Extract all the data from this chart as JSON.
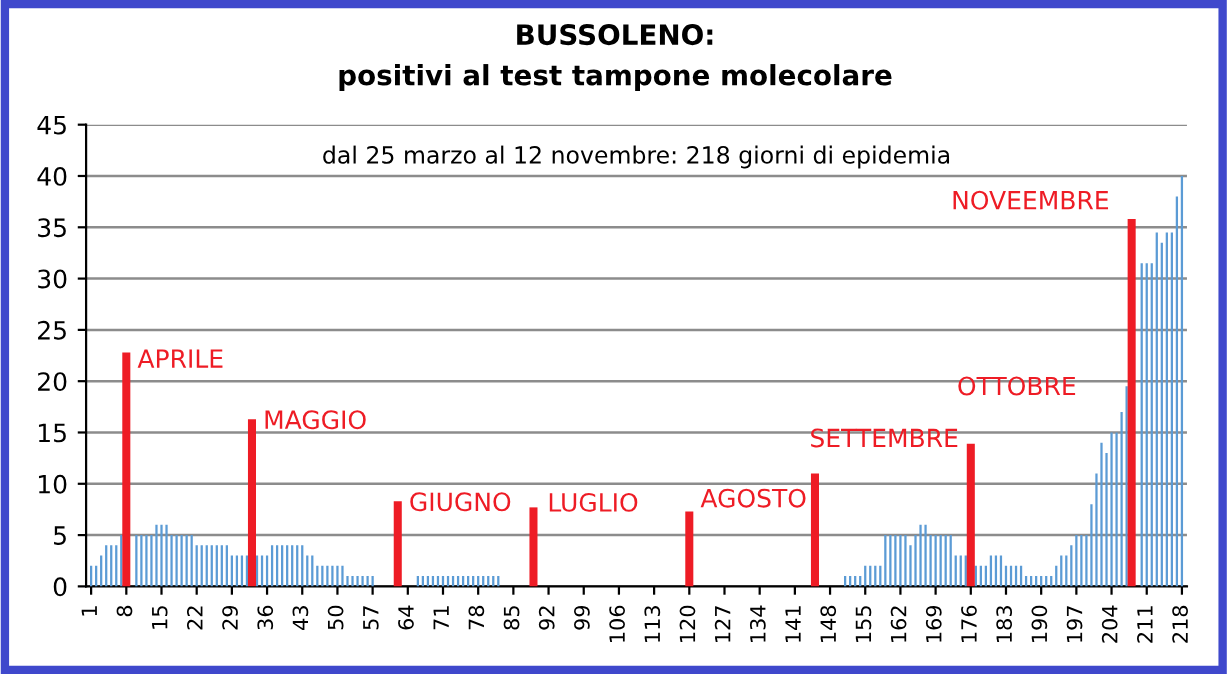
{
  "chart_data": {
    "type": "bar",
    "title": "BUSSOLENO:",
    "subtitle": "positivi al test tampone molecolare",
    "x": [
      1,
      2,
      3,
      4,
      5,
      6,
      7,
      8,
      9,
      10,
      11,
      12,
      13,
      14,
      15,
      16,
      17,
      18,
      19,
      20,
      21,
      22,
      23,
      24,
      25,
      26,
      27,
      28,
      29,
      30,
      31,
      32,
      33,
      34,
      35,
      36,
      37,
      38,
      39,
      40,
      41,
      42,
      43,
      44,
      45,
      46,
      47,
      48,
      49,
      50,
      51,
      52,
      53,
      54,
      55,
      56,
      57,
      58,
      59,
      60,
      61,
      62,
      63,
      64,
      65,
      66,
      67,
      68,
      69,
      70,
      71,
      72,
      73,
      74,
      75,
      76,
      77,
      78,
      79,
      80,
      81,
      82,
      83,
      84,
      85,
      86,
      87,
      88,
      89,
      90,
      91,
      92,
      93,
      94,
      95,
      96,
      97,
      98,
      99,
      100,
      101,
      102,
      103,
      104,
      105,
      106,
      107,
      108,
      109,
      110,
      111,
      112,
      113,
      114,
      115,
      116,
      117,
      118,
      119,
      120,
      121,
      122,
      123,
      124,
      125,
      126,
      127,
      128,
      129,
      130,
      131,
      132,
      133,
      134,
      135,
      136,
      137,
      138,
      139,
      140,
      141,
      142,
      143,
      144,
      145,
      146,
      147,
      148,
      149,
      150,
      151,
      152,
      153,
      154,
      155,
      156,
      157,
      158,
      159,
      160,
      161,
      162,
      163,
      164,
      165,
      166,
      167,
      168,
      169,
      170,
      171,
      172,
      173,
      174,
      175,
      176,
      177,
      178,
      179,
      180,
      181,
      182,
      183,
      184,
      185,
      186,
      187,
      188,
      189,
      190,
      191,
      192,
      193,
      194,
      195,
      196,
      197,
      198,
      199,
      200,
      201,
      202,
      203,
      204,
      205,
      206,
      207,
      208,
      209,
      210,
      211,
      212,
      213,
      214,
      215,
      216,
      217,
      218
    ],
    "xlim": [
      0,
      219
    ],
    "xticks": [
      1,
      8,
      15,
      22,
      29,
      36,
      43,
      50,
      57,
      64,
      71,
      78,
      85,
      92,
      99,
      106,
      113,
      120,
      127,
      134,
      141,
      148,
      155,
      162,
      169,
      176,
      183,
      190,
      197,
      204,
      211,
      218
    ],
    "ylim": [
      0,
      45
    ],
    "yticks": [
      0,
      5,
      10,
      15,
      20,
      25,
      30,
      35,
      40,
      45
    ],
    "grid": "y",
    "series": [
      {
        "color": "#5b9bd5",
        "values": [
          2,
          2,
          3,
          4,
          4,
          4,
          5,
          null,
          null,
          5,
          5,
          5,
          5,
          6,
          6,
          6,
          5,
          5,
          5,
          5,
          5,
          4,
          4,
          4,
          4,
          4,
          4,
          4,
          3,
          3,
          3,
          3,
          null,
          3,
          3,
          3,
          4,
          4,
          4,
          4,
          4,
          4,
          4,
          3,
          3,
          2,
          2,
          2,
          2,
          2,
          2,
          1,
          1,
          1,
          1,
          1,
          1,
          0,
          0,
          0,
          0,
          null,
          0,
          0,
          0,
          1,
          1,
          1,
          1,
          1,
          1,
          1,
          1,
          1,
          1,
          1,
          1,
          1,
          1,
          1,
          1,
          1,
          0,
          0,
          0,
          0,
          0,
          0,
          null,
          0,
          0,
          0,
          0,
          0,
          0,
          0,
          0,
          0,
          0,
          0,
          0,
          0,
          0,
          0,
          0,
          0,
          0,
          0,
          0,
          0,
          0,
          0,
          0,
          0,
          0,
          0,
          0,
          0,
          0,
          null,
          0,
          0,
          0,
          0,
          0,
          0,
          0,
          0,
          0,
          0,
          0,
          0,
          0,
          0,
          0,
          0,
          0,
          0,
          0,
          0,
          0,
          0,
          0,
          0,
          null,
          0,
          0,
          0,
          0,
          0,
          1,
          1,
          1,
          1,
          2,
          2,
          2,
          2,
          5,
          5,
          5,
          5,
          5,
          4,
          5,
          6,
          6,
          5,
          5,
          5,
          5,
          5,
          3,
          3,
          3,
          null,
          2,
          2,
          2,
          3,
          3,
          3,
          2,
          2,
          2,
          2,
          1,
          1,
          1,
          1,
          1,
          1,
          2,
          3,
          3,
          4,
          5,
          5,
          5,
          8,
          11,
          14,
          13,
          15,
          15,
          17,
          19.5,
          null,
          null,
          31.5,
          31.5,
          31.5,
          34.5,
          33.5,
          34.5,
          34.5,
          38,
          40
        ]
      },
      {
        "color": "#ee1c25",
        "x": [
          8,
          33,
          62,
          89,
          120,
          145,
          176,
          208
        ],
        "values": [
          22.8,
          16.3,
          8.3,
          7.7,
          7.3,
          11,
          13.9,
          35.8
        ]
      }
    ],
    "annotations": [
      "dal 25 marzo al 12 novembre: 218 giorni di epidemia",
      {
        "text": "APRILE",
        "x": 8,
        "y": 22.8
      },
      {
        "text": "MAGGIO",
        "x": 33,
        "y": 16.3
      },
      {
        "text": "GIUGNO",
        "x": 62,
        "y": 8.3
      },
      {
        "text": "LUGLIO",
        "x": 89,
        "y": 7.7
      },
      {
        "text": "AGOSTO",
        "x": 120,
        "y": 7.3
      },
      {
        "text": "SETTEMBRE",
        "x": 145,
        "y": 11
      },
      {
        "text": "OTTOBRE",
        "x": 176,
        "y": 13.9
      },
      {
        "text": "NOVEEMBRE",
        "x": 208,
        "y": 35.8
      }
    ]
  }
}
